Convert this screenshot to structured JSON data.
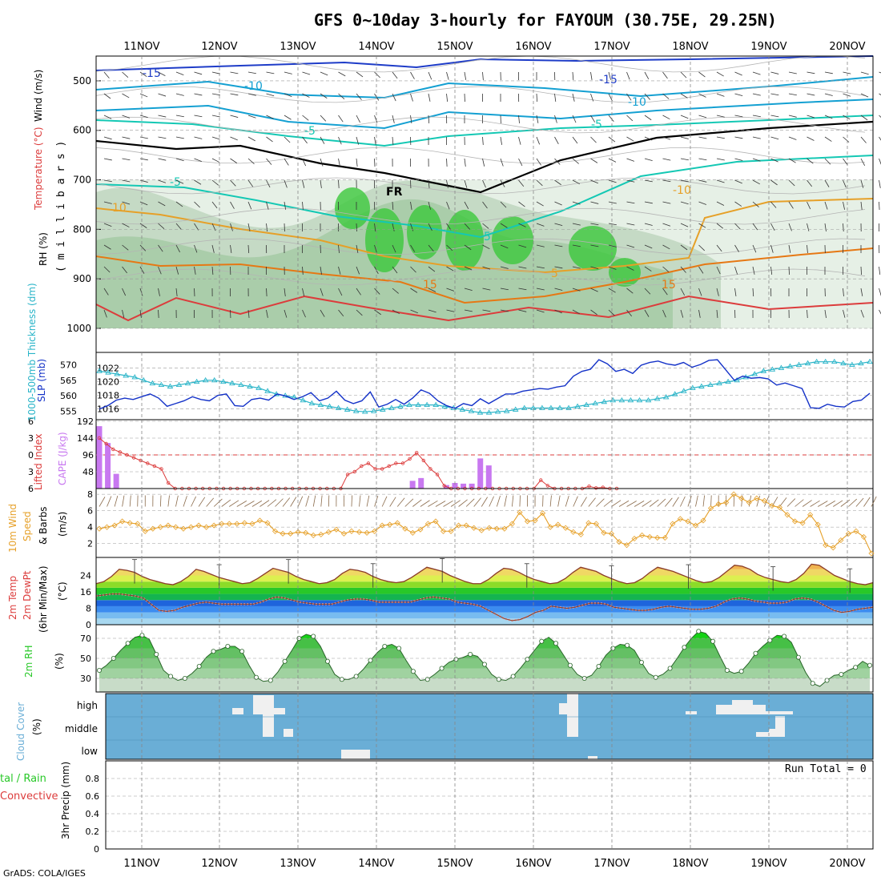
{
  "title": "GFS 0~10day 3-hourly for FAYOUM (30.75E, 29.25N)",
  "footer": "GrADS: COLA/IGES",
  "run_total_label": "Run Total = 0",
  "dates": [
    "11NOV",
    "12NOV",
    "13NOV",
    "14NOV",
    "15NOV",
    "16NOV",
    "17NOV",
    "18NOV",
    "19NOV",
    "20NOV"
  ],
  "colors": {
    "temp_cold": "#1e3cc8",
    "temp_mid": "#14a0d2",
    "temp_cyan": "#14c8b4",
    "freezing": "#000000",
    "temp_warm": "#e6a028",
    "temp_hot": "#e67814",
    "temp_hotter": "#dc3c3c",
    "temp_hottest": "#dc14a0",
    "rh_light": "#e6f0e6",
    "rh_mid": "#aac8aa",
    "rh_dark": "#78b478",
    "rh_green": "#3cc83c",
    "thickness": "#28b4c8",
    "slp": "#1432c8",
    "cape": "#c878f0",
    "lifted": "#dc3c3c",
    "wind": "#e6a028",
    "rh2m": "#28c828",
    "cloud_bg": "#6aaed6",
    "cloud_fill": "#f0f0f0"
  },
  "panels": {
    "upper_air": {
      "ylabel_rh": "RH (%)",
      "ylabel_temp": "Temperature (°C)",
      "ylabel_wind": "Wind (m/s)",
      "ylabel_unit": "( m i l l i b a r s )",
      "freezing_label": "FR"
    },
    "slp_thickness": {
      "ylabel_thick": "1000-500mb Thickness (dm)",
      "ylabel_slp": "SLP (mb)"
    },
    "cape_li": {
      "ylabel_li": "Lifted Index",
      "ylabel_cape": "CAPE (J/kg)"
    },
    "wind10m": {
      "ylabel_1": "10m Wind",
      "ylabel_2": "Speed",
      "ylabel_3": "& Barbs",
      "unit": "(m/s)"
    },
    "temp2m": {
      "ylabel_1": "2m Temp",
      "ylabel_2": "2m DewPt",
      "ylabel_3": "(6hr Min/Max)",
      "unit": "(°C)"
    },
    "rh2m": {
      "ylabel": "2m RH",
      "unit": "(%)"
    },
    "cloud": {
      "ylabel": "Cloud Cover",
      "unit": "(%)"
    },
    "precip": {
      "ylabel_1": "tal / Rain",
      "ylabel_2": "Convective",
      "ylabel_3": "3hr Precip (mm)"
    }
  },
  "chart_data": [
    {
      "type": "heatmap",
      "name": "upper_air",
      "y_ticks": [
        500,
        600,
        700,
        800,
        900,
        1000
      ],
      "ylim": [
        450,
        1000
      ],
      "contour_labels": [
        "-15",
        "-10",
        "-5",
        "-15",
        "-10",
        "-5",
        "-5",
        "10",
        "5",
        "5",
        "-10",
        "15",
        "15",
        "FR"
      ]
    },
    {
      "type": "line",
      "name": "slp_thickness",
      "thick_ticks": [
        555,
        560,
        565,
        570
      ],
      "slp_ticks": [
        1016,
        1018,
        1020,
        1022
      ],
      "thick_ylim": [
        553,
        573
      ],
      "slp_ylim": [
        1014.8,
        1023.8
      ],
      "thickness": [
        568,
        567.5,
        567,
        566.5,
        566,
        565,
        564,
        563.5,
        563,
        563.5,
        564,
        564.5,
        565,
        565,
        564.5,
        564,
        563.5,
        563,
        562.5,
        561.5,
        560.5,
        560,
        559.5,
        558.5,
        557.5,
        557,
        556.5,
        556,
        555.5,
        555,
        554.8,
        555,
        555.5,
        556,
        556.5,
        557,
        557,
        557,
        557,
        556.5,
        556,
        555.5,
        555,
        554.5,
        554.5,
        554.8,
        555,
        555.5,
        556,
        556,
        556,
        556,
        556,
        556,
        556.5,
        557,
        557.5,
        558,
        558.5,
        558.5,
        558.5,
        558.5,
        558.5,
        559,
        559.5,
        560.5,
        561.5,
        562.5,
        563,
        563.5,
        564,
        564.5,
        565,
        566,
        567,
        568,
        568.5,
        569,
        569.5,
        570,
        570.5,
        571,
        571,
        571,
        570.5,
        570,
        570.5,
        571
      ],
      "slp": [
        1016,
        1016.5,
        1017.3,
        1017.6,
        1017.4,
        1017.8,
        1018.2,
        1017.6,
        1016.4,
        1016.8,
        1017.2,
        1017.8,
        1017.4,
        1017.2,
        1018,
        1018.2,
        1016.5,
        1016.4,
        1017.4,
        1017.6,
        1017.3,
        1018.2,
        1017.9,
        1017.4,
        1017.8,
        1018.4,
        1017.2,
        1017.6,
        1018.6,
        1017.3,
        1016.8,
        1017.2,
        1018.5,
        1016.3,
        1016.7,
        1017.4,
        1016.7,
        1017.6,
        1018.8,
        1018.3,
        1017.2,
        1016.5,
        1016.1,
        1016.8,
        1016.5,
        1017.5,
        1016.8,
        1017.5,
        1018.2,
        1018.2,
        1018.6,
        1018.8,
        1019,
        1018.9,
        1019.2,
        1019.4,
        1020.8,
        1021.5,
        1021.8,
        1023.2,
        1022.6,
        1021.5,
        1021.8,
        1021.2,
        1022.4,
        1022.8,
        1023,
        1022.6,
        1022.4,
        1022.8,
        1022.1,
        1022.5,
        1023.1,
        1023.2,
        1021.7,
        1020.2,
        1020.8,
        1020.5,
        1020.6,
        1020.4,
        1019.5,
        1019.8,
        1019.4,
        1019,
        1016.2,
        1016.1,
        1016.7,
        1016.4,
        1016.3,
        1017.1,
        1017.3,
        1018.3
      ]
    },
    {
      "type": "bar",
      "name": "cape_li",
      "cape_ticks": [
        48,
        96,
        144,
        192
      ],
      "li_ticks": [
        -6,
        -3,
        0,
        3,
        6
      ],
      "cape_ylim": [
        0,
        192
      ],
      "li_ylim": [
        -6,
        6
      ],
      "cape": [
        178,
        130,
        42,
        0,
        0,
        0,
        0,
        0,
        0,
        0,
        0,
        0,
        0,
        0,
        0,
        0,
        0,
        0,
        0,
        0,
        0,
        0,
        0,
        0,
        0,
        0,
        0,
        0,
        0,
        0,
        0,
        0,
        0,
        0,
        0,
        0,
        0,
        22,
        30,
        0,
        0,
        10,
        16,
        14,
        14,
        86,
        66,
        0,
        0,
        0,
        0,
        0,
        0,
        0,
        0,
        0,
        0,
        0,
        0,
        0,
        0,
        0,
        0,
        0,
        0,
        0,
        0,
        0,
        0,
        0,
        0,
        0,
        0,
        0,
        0,
        0,
        0,
        0,
        0,
        0,
        0,
        0,
        0,
        0,
        0,
        0,
        0,
        0,
        0,
        0,
        0,
        0
      ],
      "lifted": [
        -3,
        -2,
        -1,
        -0.5,
        0,
        0.5,
        1,
        1.5,
        2,
        2.5,
        5,
        6,
        7,
        8,
        8,
        8,
        7,
        6.5,
        7,
        7,
        7,
        8,
        8,
        8,
        7,
        7,
        7,
        6,
        6,
        7,
        7,
        7,
        6.5,
        6.5,
        6.5,
        6.5,
        3.5,
        3,
        2,
        1.5,
        2.5,
        2.5,
        2,
        1.5,
        1.5,
        0.7,
        -0.4,
        1,
        2.5,
        3.5,
        5.5,
        7,
        7.5,
        7.5,
        6,
        6.4,
        6.2,
        7.5,
        7.5,
        6.5,
        6.5,
        6.5,
        6,
        6.8,
        4.5,
        5.5,
        6,
        6.5,
        7,
        6.7,
        6.3,
        5.6,
        5.9,
        5.8,
        6.3,
        6.4
      ]
    },
    {
      "type": "line",
      "name": "wind10m",
      "ticks": [
        2,
        4,
        6,
        8
      ],
      "ylim": [
        0.5,
        8.5
      ],
      "values": [
        3.8,
        4,
        4.2,
        4.7,
        4.5,
        4.4,
        3.5,
        3.8,
        4,
        4.2,
        4,
        3.8,
        4,
        4.2,
        4,
        4.2,
        4.4,
        4.4,
        4.4,
        4.5,
        4.4,
        4.8,
        4.5,
        3.5,
        3.2,
        3.2,
        3.4,
        3.3,
        3,
        3.1,
        3.4,
        3.7,
        3.2,
        3.5,
        3.4,
        3.3,
        3.5,
        4.2,
        4.3,
        4.5,
        3.8,
        3.3,
        3.7,
        4.4,
        4.7,
        3.5,
        3.5,
        4.2,
        4.2,
        3.9,
        3.6,
        3.9,
        3.8,
        3.8,
        4.4,
        5.8,
        4.7,
        4.8,
        5.7,
        4,
        4.3,
        3.9,
        3.4,
        3.1,
        4.5,
        4.4,
        3.3,
        3.2,
        2.2,
        1.8,
        2.6,
        3,
        2.8,
        2.7,
        2.7,
        4.4,
        5,
        4.7,
        4.2,
        4.8,
        6.3,
        6.8,
        7,
        8,
        7.5,
        7,
        7.5,
        7.2,
        6.6,
        6.4,
        5.5,
        4.7,
        4.5,
        5.5,
        4.3,
        1.8,
        1.5,
        2.4,
        3.2,
        3.5,
        2.8,
        0.8
      ]
    },
    {
      "type": "area",
      "name": "temp2m",
      "ticks": [
        0,
        8,
        16,
        24
      ],
      "ylim": [
        0,
        32
      ],
      "band_edges": [
        0,
        3,
        6,
        9,
        12,
        15,
        18,
        21,
        24,
        27,
        32
      ],
      "temp": [
        20,
        21,
        23.5,
        27,
        26.5,
        25.5,
        23.5,
        22,
        21,
        20,
        19.5,
        21,
        23.5,
        27,
        26,
        24.5,
        23,
        22,
        21,
        20,
        20.5,
        22.5,
        25,
        27.5,
        26.5,
        25.5,
        23.5,
        22,
        21,
        20,
        20.5,
        22,
        25,
        27,
        26.5,
        25.5,
        23.5,
        22,
        21,
        20.5,
        21,
        23,
        25.5,
        28,
        27,
        26,
        24,
        22.5,
        21,
        20,
        20,
        22,
        25,
        27.5,
        27,
        25.5,
        23.5,
        22,
        21,
        20,
        20.5,
        22.5,
        25.5,
        28,
        27,
        26,
        24,
        22.5,
        21,
        20,
        20.5,
        22.5,
        25.5,
        28,
        27,
        26,
        24.5,
        23,
        21.5,
        20.5,
        21,
        23,
        26,
        29,
        28.5,
        27,
        24.5,
        23,
        22,
        21,
        20.5,
        22,
        25,
        29.5,
        29,
        26.5,
        24,
        22.5,
        21,
        20,
        19.5,
        20.5
      ],
      "dewpoint": [
        14,
        14.5,
        15,
        15,
        14.5,
        14,
        13,
        10,
        7,
        6.5,
        7,
        8.5,
        9.5,
        10.5,
        11,
        10.5,
        10,
        10,
        10,
        10,
        10,
        11,
        12.5,
        13.5,
        13,
        12,
        11,
        10.5,
        10,
        10,
        10,
        11,
        12,
        12.5,
        12.5,
        12,
        11,
        11,
        11,
        11,
        11,
        12,
        13,
        13.5,
        13,
        12.5,
        11,
        10.5,
        10,
        9,
        7,
        5,
        3,
        2,
        2.5,
        4,
        6,
        7,
        9,
        8.5,
        8,
        8.5,
        9.5,
        10.5,
        10.5,
        10,
        8.5,
        8,
        7.5,
        7,
        7,
        7.5,
        8.5,
        9,
        8.5,
        8,
        7.5,
        7.5,
        8,
        9,
        11,
        12.5,
        13,
        12.5,
        11.5,
        11,
        10.5,
        10.5,
        11,
        12.5,
        13,
        12.5,
        11,
        9,
        7,
        6,
        6.5,
        7.5,
        8,
        8.5
      ]
    },
    {
      "type": "area",
      "name": "rh2m",
      "ticks": [
        30,
        50,
        70
      ],
      "ylim": [
        18,
        82
      ],
      "values": [
        38,
        43,
        50,
        58,
        65,
        71,
        73,
        69,
        54,
        38,
        32,
        28,
        30,
        35,
        42,
        51,
        57,
        59,
        62,
        62,
        57,
        43,
        31,
        27,
        28,
        36,
        47,
        58,
        70,
        74,
        72,
        62,
        47,
        34,
        29,
        29,
        32,
        39,
        48,
        56,
        62,
        64,
        60,
        48,
        37,
        28,
        29,
        34,
        40,
        46,
        49,
        51,
        54,
        52,
        44,
        34,
        29,
        28,
        32,
        40,
        49,
        58,
        67,
        71,
        65,
        54,
        43,
        34,
        30,
        33,
        42,
        53,
        60,
        64,
        63,
        58,
        46,
        35,
        31,
        34,
        40,
        50,
        61,
        70,
        77,
        75,
        67,
        52,
        38,
        35,
        37,
        45,
        55,
        62,
        68,
        73,
        72,
        66,
        51,
        36,
        25,
        22,
        28,
        33,
        34,
        38,
        41,
        47,
        43
      ]
    },
    {
      "type": "table",
      "name": "cloud_cover",
      "levels": [
        "high",
        "middle",
        "low"
      ]
    },
    {
      "type": "bar",
      "name": "precip_3hr",
      "ticks": [
        "0.2",
        "0.4",
        "0.6",
        "0.8"
      ],
      "zero_label": "0",
      "ylim": [
        0,
        1
      ],
      "values": []
    }
  ]
}
